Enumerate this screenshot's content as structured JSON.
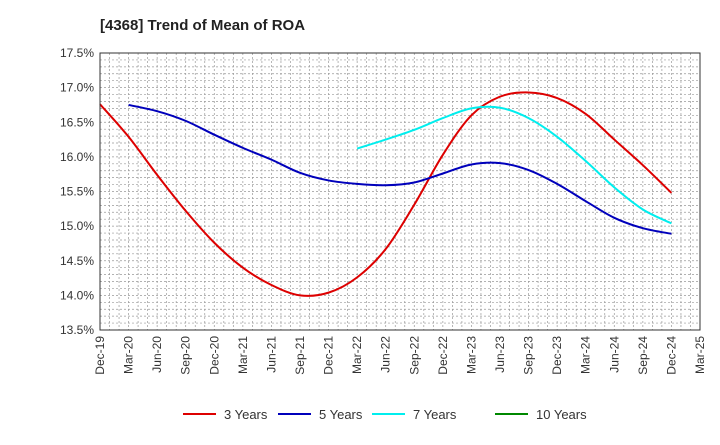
{
  "chart_data": {
    "type": "line",
    "title": "[4368]  Trend of Mean of ROA",
    "xlabel": "",
    "ylabel": "",
    "x_ticks": [
      "Dec-19",
      "Mar-20",
      "Jun-20",
      "Sep-20",
      "Dec-20",
      "Mar-21",
      "Jun-21",
      "Sep-21",
      "Dec-21",
      "Mar-22",
      "Jun-22",
      "Sep-22",
      "Dec-22",
      "Mar-23",
      "Jun-23",
      "Sep-23",
      "Dec-23",
      "Mar-24",
      "Jun-24",
      "Sep-24",
      "Dec-24",
      "Mar-25"
    ],
    "y_ticks": [
      "13.5%",
      "14.0%",
      "14.5%",
      "15.0%",
      "15.5%",
      "16.0%",
      "16.5%",
      "17.0%",
      "17.5%"
    ],
    "ylim": [
      13.5,
      17.5
    ],
    "grid": true,
    "legend_position": "bottom",
    "series": [
      {
        "name": "3 Years",
        "color": "#dd0000",
        "values": [
          16.76,
          16.29,
          15.74,
          15.22,
          14.76,
          14.4,
          14.15,
          14.0,
          14.04,
          14.26,
          14.67,
          15.31,
          16.03,
          16.6,
          16.87,
          16.93,
          16.85,
          16.62,
          16.25,
          15.88,
          15.48,
          null
        ]
      },
      {
        "name": "5 Years",
        "color": "#0000bb",
        "values": [
          null,
          16.75,
          16.66,
          16.52,
          16.32,
          16.13,
          15.96,
          15.77,
          15.66,
          15.61,
          15.59,
          15.63,
          15.76,
          15.89,
          15.91,
          15.81,
          15.61,
          15.36,
          15.12,
          14.97,
          14.89,
          null
        ]
      },
      {
        "name": "7 Years",
        "color": "#00eeee",
        "values": [
          null,
          null,
          null,
          null,
          null,
          null,
          null,
          null,
          null,
          16.12,
          16.25,
          16.39,
          16.56,
          16.7,
          16.71,
          16.56,
          16.29,
          15.94,
          15.56,
          15.24,
          15.04,
          null
        ]
      },
      {
        "name": "10 Years",
        "color": "#008800",
        "values": [
          null,
          null,
          null,
          null,
          null,
          null,
          null,
          null,
          null,
          null,
          null,
          null,
          null,
          null,
          null,
          null,
          null,
          null,
          null,
          null,
          null,
          null
        ]
      }
    ]
  }
}
